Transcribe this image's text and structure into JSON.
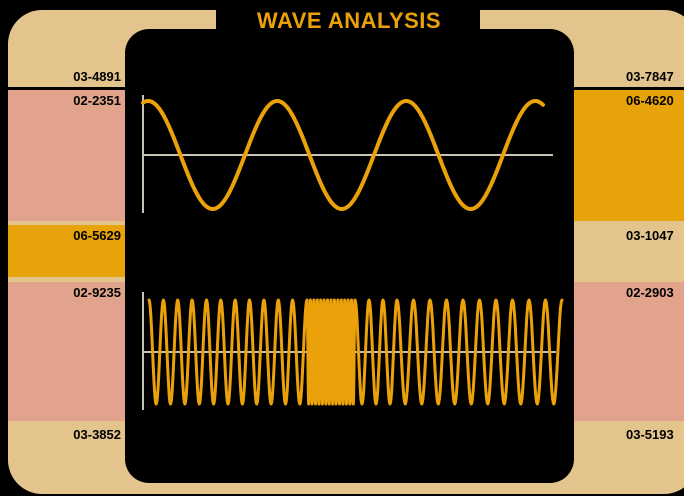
{
  "title": "WAVE ANALYSIS",
  "colors": {
    "frame": "#e3c48c",
    "salmon": "#e2a38c",
    "amber": "#e6a30a",
    "wave": "#eba20a",
    "axis": "#c9c3b4"
  },
  "left_panels": [
    {
      "code": "03-4891",
      "color": "#e3c48c"
    },
    {
      "code": "02-2351",
      "color": "#e2a38c"
    },
    {
      "code": "06-5629",
      "color": "#e6a30a"
    },
    {
      "code": "02-9235",
      "color": "#e2a38c"
    },
    {
      "code": "03-3852",
      "color": "#e3c48c"
    }
  ],
  "right_panels": [
    {
      "code": "03-7847",
      "color": "#e3c48c"
    },
    {
      "code": "06-4620",
      "color": "#e6a30a"
    },
    {
      "code": "03-1047",
      "color": "#e3c48c"
    },
    {
      "code": "02-2903",
      "color": "#e2a38c"
    },
    {
      "code": "03-5193",
      "color": "#e3c48c"
    }
  ],
  "waves": {
    "top": {
      "cycles": 3.1,
      "shape": "sine"
    },
    "bottom": {
      "segments": [
        {
          "cycles": 11,
          "band": "medium"
        },
        {
          "cycles": 14,
          "band": "high"
        },
        {
          "cycles": 3,
          "band": "low"
        },
        {
          "cycles": 10,
          "band": "medium"
        }
      ]
    }
  }
}
